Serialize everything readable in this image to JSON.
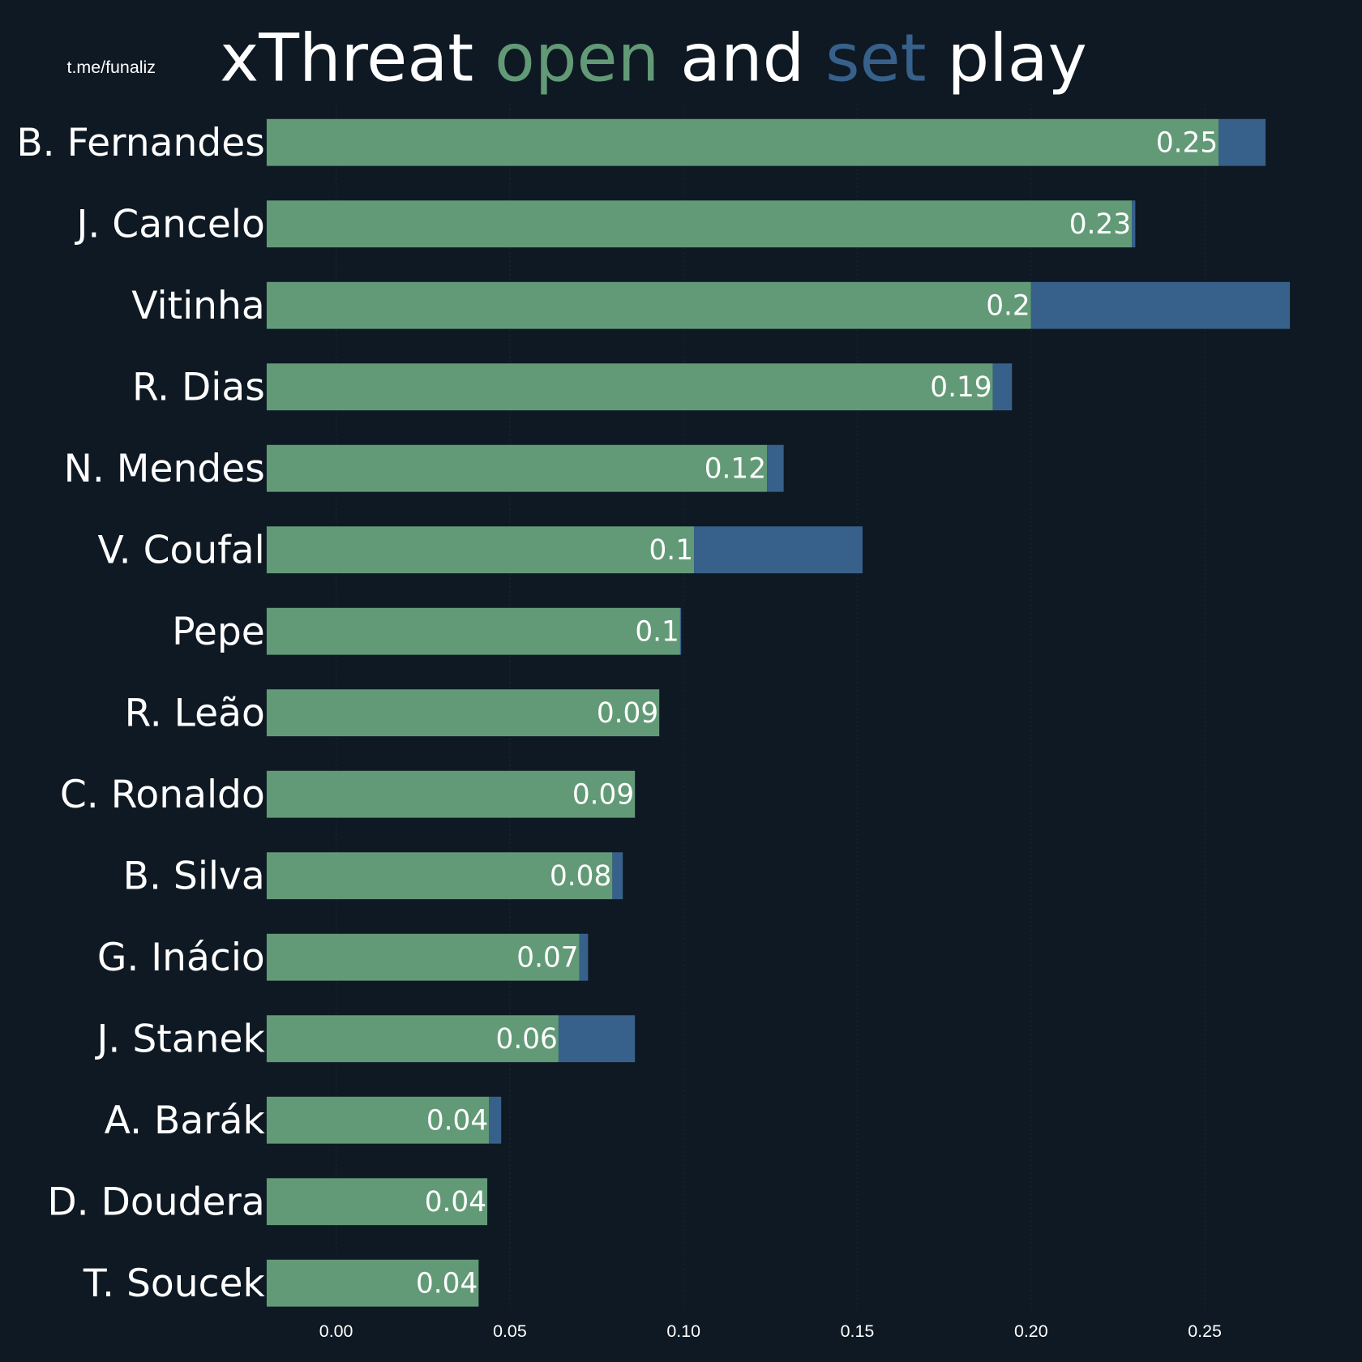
{
  "chart_data": {
    "type": "stacked-barh",
    "title_parts": [
      "xThreat",
      "and",
      "play"
    ],
    "watermark": "t.me/funaliz",
    "categories": [
      "B. Fernandes",
      "J. Cancelo",
      "Vitinha",
      "R. Dias",
      "N. Mendes",
      "V. Coufal",
      "Pepe",
      "R. Leão",
      "C. Ronaldo",
      "B. Silva",
      "G. Inácio",
      "J. Stanek",
      "A. Barák",
      "D. Doudera",
      "T. Soucek"
    ],
    "series": [
      {
        "name": "open",
        "color": "#629a77",
        "values": [
          0.254,
          0.229,
          0.2,
          0.189,
          0.124,
          0.103,
          0.099,
          0.093,
          0.086,
          0.0795,
          0.07,
          0.064,
          0.044,
          0.0435,
          0.041
        ],
        "value_labels": [
          "0.25",
          "0.23",
          "0.2",
          "0.19",
          "0.12",
          "0.1",
          "0.1",
          "0.09",
          "0.09",
          "0.08",
          "0.07",
          "0.06",
          "0.04",
          "0.04",
          "0.04"
        ]
      },
      {
        "name": "set",
        "color": "#37618b",
        "values": [
          0.0135,
          0.001,
          0.0745,
          0.0055,
          0.0048,
          0.0485,
          0.0003,
          0,
          0,
          0.003,
          0.0025,
          0.022,
          0.0035,
          0,
          0
        ]
      }
    ],
    "xlim": [
      -0.02,
      0.285
    ],
    "xticks": [
      {
        "value": 0,
        "label": "0.00"
      },
      {
        "value": 0.05,
        "label": "0.05"
      },
      {
        "value": 0.1,
        "label": "0.10"
      },
      {
        "value": 0.15,
        "label": "0.15"
      },
      {
        "value": 0.2,
        "label": "0.20"
      },
      {
        "value": 0.25,
        "label": "0.25"
      }
    ],
    "grid": true,
    "background": "#0f1923"
  }
}
